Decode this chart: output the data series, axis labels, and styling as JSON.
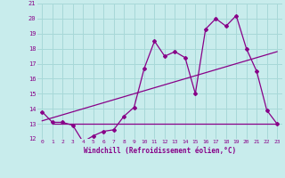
{
  "xlabel": "Windchill (Refroidissement éolien,°C)",
  "bg_color": "#c8ecec",
  "grid_color": "#a8d8d8",
  "line_color": "#880088",
  "xlim": [
    -0.5,
    23.5
  ],
  "ylim": [
    12,
    21
  ],
  "yticks": [
    12,
    13,
    14,
    15,
    16,
    17,
    18,
    19,
    20,
    21
  ],
  "xticks": [
    0,
    1,
    2,
    3,
    4,
    5,
    6,
    7,
    8,
    9,
    10,
    11,
    12,
    13,
    14,
    15,
    16,
    17,
    18,
    19,
    20,
    21,
    22,
    23
  ],
  "hours": [
    0,
    1,
    2,
    3,
    4,
    5,
    6,
    7,
    8,
    9,
    10,
    11,
    12,
    13,
    14,
    15,
    16,
    17,
    18,
    19,
    20,
    21,
    22,
    23
  ],
  "line1": [
    13.8,
    13.1,
    13.1,
    12.9,
    11.8,
    12.2,
    12.5,
    12.6,
    13.5,
    14.1,
    16.7,
    18.5,
    17.5,
    17.8,
    17.4,
    15.0,
    19.3,
    20.0,
    19.5,
    20.2,
    18.0,
    16.5,
    13.9,
    13.0
  ],
  "line2_x": [
    0,
    23
  ],
  "line2_y": [
    13.2,
    17.8
  ],
  "line3_x": [
    1,
    23
  ],
  "line3_y": [
    13.0,
    13.0
  ]
}
